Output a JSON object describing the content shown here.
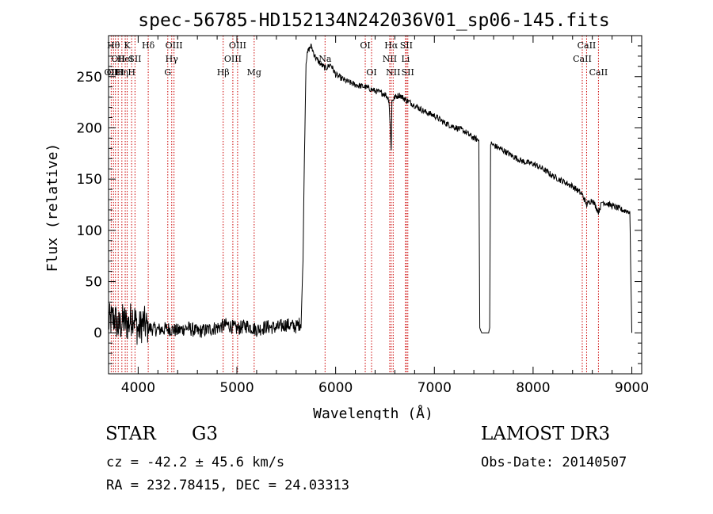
{
  "chart_data": {
    "type": "line",
    "title": "spec-56785-HD152134N242036V01_sp06-145.fits",
    "xlabel": "Wavelength (Å)",
    "ylabel": "Flux (relative)",
    "xlim": [
      3700,
      9100
    ],
    "ylim": [
      -40,
      290
    ],
    "xticks": [
      4000,
      5000,
      6000,
      7000,
      8000,
      9000
    ],
    "xtick_labels": [
      "4000",
      "5000",
      "6000",
      "7000",
      "8000",
      "9000"
    ],
    "yticks": [
      0,
      50,
      100,
      150,
      200,
      250
    ],
    "ytick_labels": [
      "0",
      "50",
      "100",
      "150",
      "200",
      "250"
    ],
    "series": [
      {
        "name": "spectrum",
        "x": [
          3700,
          3760,
          3800,
          3850,
          3900,
          3950,
          4000,
          4050,
          4100,
          4200,
          4300,
          4400,
          4500,
          4600,
          4700,
          4800,
          4900,
          5000,
          5100,
          5200,
          5300,
          5400,
          5500,
          5600,
          5650,
          5670,
          5680,
          5700,
          5720,
          5750,
          5800,
          5850,
          5900,
          5950,
          6000,
          6100,
          6200,
          6300,
          6400,
          6500,
          6540,
          6563,
          6570,
          6600,
          6650,
          6700,
          6800,
          6900,
          7000,
          7100,
          7200,
          7300,
          7400,
          7450,
          7460,
          7470,
          7480,
          7490,
          7500,
          7520,
          7540,
          7550,
          7560,
          7570,
          7600,
          7700,
          7800,
          7900,
          8000,
          8100,
          8200,
          8300,
          8400,
          8498,
          8542,
          8600,
          8662,
          8700,
          8800,
          8900,
          8980,
          9000
        ],
        "y": [
          10,
          15,
          5,
          12,
          8,
          18,
          2,
          10,
          5,
          3,
          4,
          2,
          5,
          1,
          3,
          5,
          8,
          4,
          7,
          3,
          6,
          5,
          8,
          6,
          10,
          70,
          150,
          265,
          275,
          280,
          268,
          262,
          258,
          262,
          252,
          246,
          242,
          240,
          236,
          233,
          228,
          180,
          226,
          230,
          232,
          228,
          222,
          216,
          212,
          205,
          201,
          197,
          190,
          188,
          5,
          2,
          0,
          0,
          0,
          0,
          0,
          0,
          5,
          185,
          183,
          178,
          172,
          167,
          165,
          160,
          153,
          148,
          143,
          135,
          125,
          130,
          118,
          128,
          124,
          120,
          118,
          0
        ]
      }
    ],
    "lines": [
      {
        "wl": 3727,
        "label": "OII",
        "row": 2
      },
      {
        "wl": 3750,
        "label": "Hθ",
        "row": 0
      },
      {
        "wl": 3770,
        "label": "OIII",
        "row": 2
      },
      {
        "wl": 3798,
        "label": "OII",
        "row": 1
      },
      {
        "wl": 3835,
        "label": "Hη",
        "row": 2
      },
      {
        "wl": 3869,
        "label": "HeI",
        "row": 1
      },
      {
        "wl": 3889,
        "label": "K",
        "row": 0
      },
      {
        "wl": 3934,
        "label": "H",
        "row": 2
      },
      {
        "wl": 3968,
        "label": "SII",
        "row": 1
      },
      {
        "wl": 4102,
        "label": "Hδ",
        "row": 0
      },
      {
        "wl": 4300,
        "label": "G",
        "row": 2
      },
      {
        "wl": 4340,
        "label": "Hγ",
        "row": 1
      },
      {
        "wl": 4363,
        "label": "OIII",
        "row": 0
      },
      {
        "wl": 4861,
        "label": "Hβ",
        "row": 2
      },
      {
        "wl": 4959,
        "label": "OIII",
        "row": 1
      },
      {
        "wl": 5007,
        "label": "OIII",
        "row": 0
      },
      {
        "wl": 5175,
        "label": "Mg",
        "row": 2
      },
      {
        "wl": 5893,
        "label": "Na",
        "row": 1
      },
      {
        "wl": 6300,
        "label": "OI",
        "row": 0
      },
      {
        "wl": 6364,
        "label": "OI",
        "row": 2
      },
      {
        "wl": 6548,
        "label": "NII",
        "row": 1
      },
      {
        "wl": 6563,
        "label": "Hα",
        "row": 0
      },
      {
        "wl": 6583,
        "label": "NII",
        "row": 2
      },
      {
        "wl": 6708,
        "label": "Li",
        "row": 1
      },
      {
        "wl": 6716,
        "label": "SII",
        "row": 0
      },
      {
        "wl": 6731,
        "label": "SII",
        "row": 2
      },
      {
        "wl": 8498,
        "label": "CaII",
        "row": 1
      },
      {
        "wl": 8542,
        "label": "CaII",
        "row": 0
      },
      {
        "wl": 8662,
        "label": "CaII",
        "row": 2
      }
    ]
  },
  "info": {
    "obj_class": "STAR",
    "subclass": "G3",
    "survey": "LAMOST DR3",
    "cz": "cz = -42.2 ± 45.6 km/s",
    "obs_date": "Obs-Date: 20140507",
    "radec": "RA = 232.78415, DEC =  24.03313"
  },
  "colors": {
    "line": "#000000",
    "marker": "#cc0000"
  }
}
